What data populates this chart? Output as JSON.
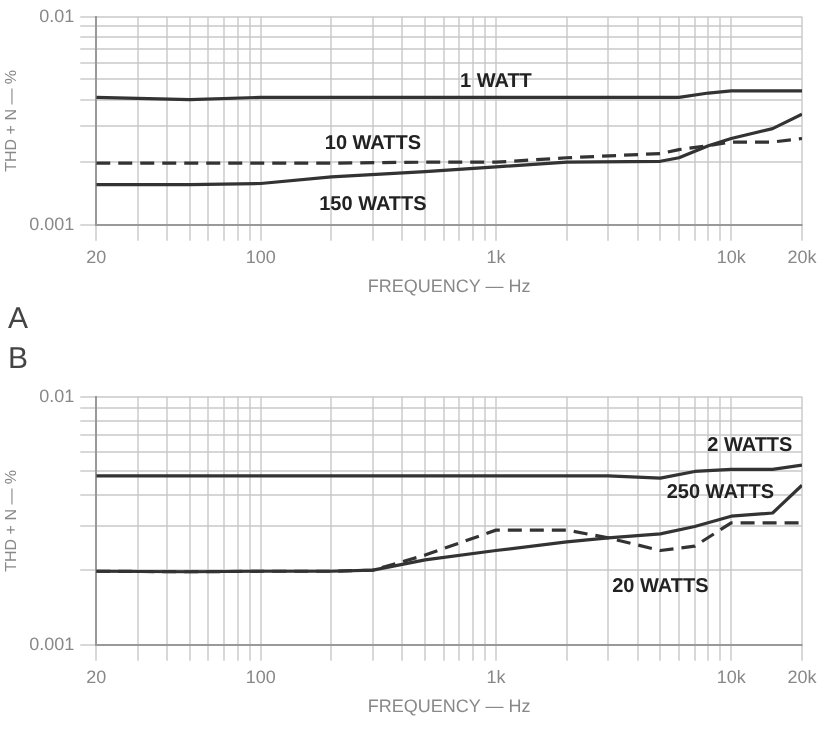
{
  "chart_data": [
    {
      "type": "line",
      "title": "A",
      "xlabel": "FREQUENCY — Hz",
      "ylabel": "THD + N — %",
      "log": "xy",
      "grid": true,
      "legend": false,
      "marker": "none",
      "x": [
        20,
        50,
        100,
        200,
        500,
        1000,
        2000,
        5000,
        6000,
        8000,
        10000,
        15000,
        20000
      ],
      "xlim": [
        20,
        20000
      ],
      "ylim": [
        0.001,
        0.01
      ],
      "xticks": [
        {
          "value": 20,
          "label": "20"
        },
        {
          "value": 30,
          "label": null
        },
        {
          "value": 40,
          "label": null
        },
        {
          "value": 50,
          "label": null
        },
        {
          "value": 60,
          "label": null
        },
        {
          "value": 70,
          "label": null
        },
        {
          "value": 80,
          "label": null
        },
        {
          "value": 90,
          "label": null
        },
        {
          "value": 100,
          "label": "100"
        },
        {
          "value": 200,
          "label": null
        },
        {
          "value": 300,
          "label": null
        },
        {
          "value": 400,
          "label": null
        },
        {
          "value": 500,
          "label": null
        },
        {
          "value": 600,
          "label": null
        },
        {
          "value": 700,
          "label": null
        },
        {
          "value": 800,
          "label": null
        },
        {
          "value": 900,
          "label": null
        },
        {
          "value": 1000,
          "label": "1k"
        },
        {
          "value": 2000,
          "label": null
        },
        {
          "value": 3000,
          "label": null
        },
        {
          "value": 4000,
          "label": null
        },
        {
          "value": 5000,
          "label": null
        },
        {
          "value": 6000,
          "label": null
        },
        {
          "value": 7000,
          "label": null
        },
        {
          "value": 8000,
          "label": null
        },
        {
          "value": 9000,
          "label": null
        },
        {
          "value": 10000,
          "label": "10k"
        },
        {
          "value": 20000,
          "label": "20k"
        }
      ],
      "yticks": [
        {
          "value": 0.001,
          "label": "0.001"
        },
        {
          "value": 0.002,
          "label": null
        },
        {
          "value": 0.003,
          "label": null
        },
        {
          "value": 0.004,
          "label": null
        },
        {
          "value": 0.005,
          "label": null
        },
        {
          "value": 0.006,
          "label": null
        },
        {
          "value": 0.007,
          "label": null
        },
        {
          "value": 0.008,
          "label": null
        },
        {
          "value": 0.009,
          "label": null
        },
        {
          "value": 0.01,
          "label": "0.01"
        }
      ],
      "series": [
        {
          "name": "1 WATT",
          "color": "#333333",
          "line_style": "solid",
          "values": [
            0.0041,
            0.004,
            0.0041,
            0.0041,
            0.0041,
            0.0041,
            0.0041,
            0.0041,
            0.0041,
            0.0043,
            0.0044,
            0.0044,
            0.0044
          ]
        },
        {
          "name": "10 WATTS",
          "color": "#333333",
          "line_style": "dashed",
          "values": [
            0.00198,
            0.00198,
            0.00198,
            0.00198,
            0.002,
            0.002,
            0.0021,
            0.0022,
            0.0023,
            0.0024,
            0.0025,
            0.0025,
            0.0026
          ]
        },
        {
          "name": "150 WATTS",
          "color": "#333333",
          "line_style": "solid",
          "values": [
            0.00156,
            0.00156,
            0.00158,
            0.0017,
            0.0018,
            0.0019,
            0.002,
            0.00202,
            0.0021,
            0.0024,
            0.0026,
            0.0029,
            0.0034
          ]
        }
      ]
    },
    {
      "type": "line",
      "title": "B",
      "xlabel": "FREQUENCY — Hz",
      "ylabel": "THD + N — %",
      "log": "xy",
      "grid": true,
      "legend": false,
      "marker": "none",
      "x": [
        20,
        50,
        100,
        200,
        300,
        500,
        1000,
        2000,
        3000,
        5000,
        7000,
        10000,
        15000,
        20000
      ],
      "xlim": [
        20,
        20000
      ],
      "ylim": [
        0.001,
        0.01
      ],
      "xticks": [
        {
          "value": 20,
          "label": "20"
        },
        {
          "value": 30,
          "label": null
        },
        {
          "value": 40,
          "label": null
        },
        {
          "value": 50,
          "label": null
        },
        {
          "value": 60,
          "label": null
        },
        {
          "value": 70,
          "label": null
        },
        {
          "value": 80,
          "label": null
        },
        {
          "value": 90,
          "label": null
        },
        {
          "value": 100,
          "label": "100"
        },
        {
          "value": 200,
          "label": null
        },
        {
          "value": 300,
          "label": null
        },
        {
          "value": 400,
          "label": null
        },
        {
          "value": 500,
          "label": null
        },
        {
          "value": 600,
          "label": null
        },
        {
          "value": 700,
          "label": null
        },
        {
          "value": 800,
          "label": null
        },
        {
          "value": 900,
          "label": null
        },
        {
          "value": 1000,
          "label": "1k"
        },
        {
          "value": 2000,
          "label": null
        },
        {
          "value": 3000,
          "label": null
        },
        {
          "value": 4000,
          "label": null
        },
        {
          "value": 5000,
          "label": null
        },
        {
          "value": 6000,
          "label": null
        },
        {
          "value": 7000,
          "label": null
        },
        {
          "value": 8000,
          "label": null
        },
        {
          "value": 9000,
          "label": null
        },
        {
          "value": 10000,
          "label": "10k"
        },
        {
          "value": 20000,
          "label": "20k"
        }
      ],
      "yticks": [
        {
          "value": 0.001,
          "label": "0.001"
        },
        {
          "value": 0.002,
          "label": null
        },
        {
          "value": 0.003,
          "label": null
        },
        {
          "value": 0.004,
          "label": null
        },
        {
          "value": 0.005,
          "label": null
        },
        {
          "value": 0.006,
          "label": null
        },
        {
          "value": 0.007,
          "label": null
        },
        {
          "value": 0.008,
          "label": null
        },
        {
          "value": 0.009,
          "label": null
        },
        {
          "value": 0.01,
          "label": "0.01"
        }
      ],
      "series": [
        {
          "name": "2 WATTS",
          "color": "#333333",
          "line_style": "solid",
          "values": [
            0.0048,
            0.0048,
            0.0048,
            0.0048,
            0.0048,
            0.0048,
            0.0048,
            0.0048,
            0.0048,
            0.0047,
            0.005,
            0.0051,
            0.0051,
            0.0053
          ]
        },
        {
          "name": "250 WATTS",
          "color": "#333333",
          "line_style": "solid",
          "values": [
            0.00198,
            0.00197,
            0.00198,
            0.00198,
            0.002,
            0.0022,
            0.0024,
            0.0026,
            0.0027,
            0.0028,
            0.003,
            0.0033,
            0.0034,
            0.0044
          ]
        },
        {
          "name": "20 WATTS",
          "color": "#333333",
          "line_style": "dashed",
          "values": [
            0.00198,
            0.00197,
            0.00198,
            0.00198,
            0.002,
            0.0023,
            0.0029,
            0.0029,
            0.0027,
            0.0024,
            0.0025,
            0.0031,
            0.0031,
            0.0031
          ]
        }
      ]
    }
  ]
}
